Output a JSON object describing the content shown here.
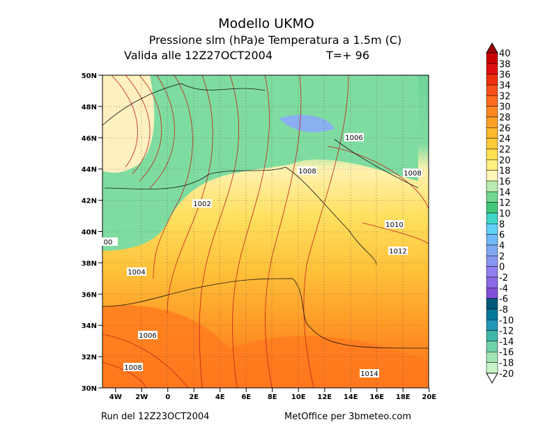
{
  "header": {
    "title": "Modello UKMO",
    "subtitle": "Pressione slm (hPa)e Temperatura a 1.5m (C)",
    "valid": "Valida alle 12Z27OCT2004",
    "forecast": "T=+ 96"
  },
  "map": {
    "lat_labels": [
      "50N",
      "48N",
      "46N",
      "44N",
      "42N",
      "40N",
      "38N",
      "36N",
      "34N",
      "32N",
      "30N"
    ],
    "lon_labels": [
      "4W",
      "2W",
      "0",
      "2E",
      "4E",
      "6E",
      "8E",
      "10E",
      "12E",
      "14E",
      "16E",
      "18E",
      "20E"
    ],
    "isobar_labels": [
      "1006",
      "1008",
      "1008",
      "1002",
      "1010",
      "1012",
      "00",
      "1004",
      "1006",
      "1008",
      "1014"
    ]
  },
  "colorbar": {
    "labels": [
      "40",
      "38",
      "36",
      "34",
      "32",
      "30",
      "28",
      "26",
      "24",
      "22",
      "20",
      "18",
      "16",
      "14",
      "12",
      "10",
      "8",
      "6",
      "4",
      "2",
      "0",
      "-2",
      "-4",
      "-6",
      "-8",
      "-10",
      "-12",
      "-14",
      "-16",
      "-18",
      "-20"
    ]
  },
  "footer": {
    "run": "Run del 12Z23OCT2004",
    "source": "MetOffice per 3bmeteo.com"
  }
}
